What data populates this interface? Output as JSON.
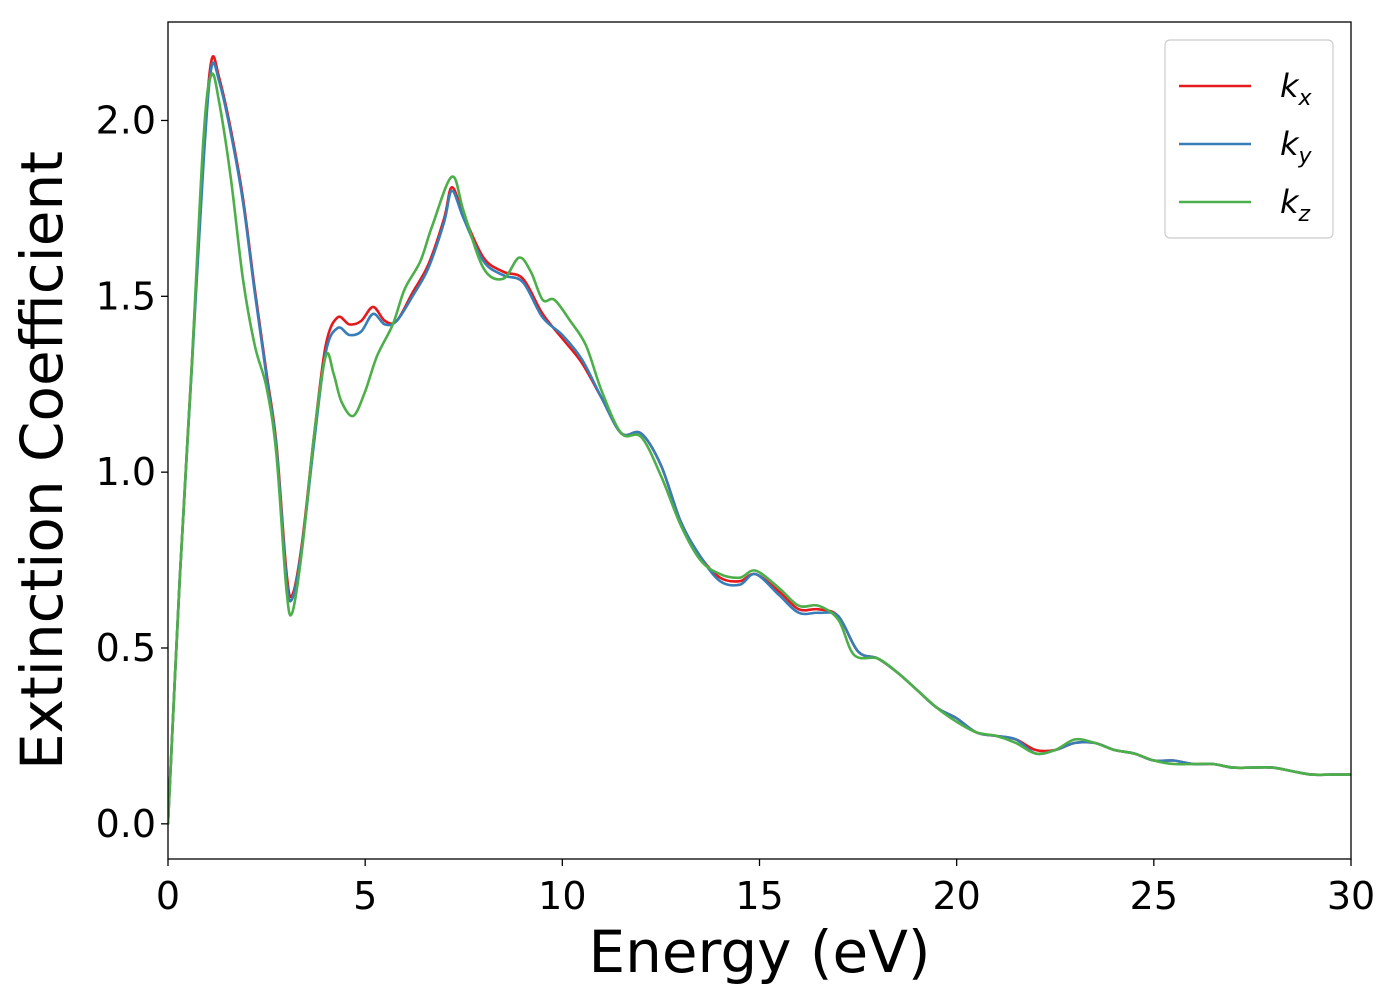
{
  "chart_data": {
    "type": "line",
    "title": "",
    "xlabel": "Energy (eV)",
    "ylabel": "Extinction Coefficient",
    "xlim": [
      0,
      30
    ],
    "ylim": [
      -0.1,
      2.28
    ],
    "xticks": [
      0,
      5,
      10,
      15,
      20,
      25,
      30
    ],
    "xtick_labels": [
      "0",
      "5",
      "10",
      "15",
      "20",
      "25",
      "30"
    ],
    "yticks": [
      0.0,
      0.5,
      1.0,
      1.5,
      2.0
    ],
    "ytick_labels": [
      "0.0",
      "0.5",
      "1.0",
      "1.5",
      "2.0"
    ],
    "grid": false,
    "legend_position": "top-right",
    "series": [
      {
        "name": "k",
        "subscript": "x",
        "color": "#e41a1c",
        "points": [
          [
            0,
            0.0
          ],
          [
            0.3,
            0.7
          ],
          [
            0.6,
            1.3
          ],
          [
            0.9,
            1.9
          ],
          [
            1.1,
            2.17
          ],
          [
            1.3,
            2.12
          ],
          [
            1.6,
            1.97
          ],
          [
            1.9,
            1.78
          ],
          [
            2.2,
            1.52
          ],
          [
            2.5,
            1.28
          ],
          [
            2.75,
            1.08
          ],
          [
            3.0,
            0.72
          ],
          [
            3.15,
            0.65
          ],
          [
            3.4,
            0.8
          ],
          [
            3.7,
            1.1
          ],
          [
            4.0,
            1.36
          ],
          [
            4.3,
            1.44
          ],
          [
            4.6,
            1.42
          ],
          [
            4.9,
            1.43
          ],
          [
            5.2,
            1.47
          ],
          [
            5.5,
            1.43
          ],
          [
            5.8,
            1.43
          ],
          [
            6.2,
            1.51
          ],
          [
            6.6,
            1.59
          ],
          [
            7.0,
            1.72
          ],
          [
            7.2,
            1.81
          ],
          [
            7.5,
            1.73
          ],
          [
            8.0,
            1.61
          ],
          [
            8.5,
            1.57
          ],
          [
            9.0,
            1.55
          ],
          [
            9.5,
            1.45
          ],
          [
            10.0,
            1.38
          ],
          [
            10.5,
            1.31
          ],
          [
            11.0,
            1.21
          ],
          [
            11.5,
            1.11
          ],
          [
            12.0,
            1.11
          ],
          [
            12.5,
            1.02
          ],
          [
            13.0,
            0.86
          ],
          [
            13.5,
            0.76
          ],
          [
            14.0,
            0.7
          ],
          [
            14.5,
            0.69
          ],
          [
            14.9,
            0.71
          ],
          [
            15.5,
            0.66
          ],
          [
            16.0,
            0.61
          ],
          [
            16.5,
            0.61
          ],
          [
            17.0,
            0.59
          ],
          [
            17.5,
            0.49
          ],
          [
            18.0,
            0.47
          ],
          [
            18.5,
            0.43
          ],
          [
            19.0,
            0.38
          ],
          [
            19.5,
            0.33
          ],
          [
            20.0,
            0.3
          ],
          [
            20.5,
            0.26
          ],
          [
            21.0,
            0.25
          ],
          [
            21.5,
            0.24
          ],
          [
            22.0,
            0.21
          ],
          [
            22.5,
            0.21
          ],
          [
            23.0,
            0.23
          ],
          [
            23.5,
            0.23
          ],
          [
            24.0,
            0.21
          ],
          [
            24.5,
            0.2
          ],
          [
            25.0,
            0.18
          ],
          [
            25.5,
            0.18
          ],
          [
            26.0,
            0.17
          ],
          [
            26.5,
            0.17
          ],
          [
            27.0,
            0.16
          ],
          [
            27.5,
            0.16
          ],
          [
            28.0,
            0.16
          ],
          [
            28.5,
            0.15
          ],
          [
            29.0,
            0.14
          ],
          [
            29.5,
            0.14
          ],
          [
            30.0,
            0.14
          ]
        ]
      },
      {
        "name": "k",
        "subscript": "y",
        "color": "#377eb8",
        "points": [
          [
            0,
            0.0
          ],
          [
            0.3,
            0.7
          ],
          [
            0.6,
            1.29
          ],
          [
            0.9,
            1.88
          ],
          [
            1.1,
            2.15
          ],
          [
            1.3,
            2.11
          ],
          [
            1.6,
            1.96
          ],
          [
            1.9,
            1.77
          ],
          [
            2.2,
            1.51
          ],
          [
            2.5,
            1.27
          ],
          [
            2.75,
            1.07
          ],
          [
            3.0,
            0.7
          ],
          [
            3.15,
            0.64
          ],
          [
            3.4,
            0.79
          ],
          [
            3.7,
            1.08
          ],
          [
            4.0,
            1.34
          ],
          [
            4.3,
            1.41
          ],
          [
            4.6,
            1.39
          ],
          [
            4.9,
            1.4
          ],
          [
            5.2,
            1.45
          ],
          [
            5.5,
            1.42
          ],
          [
            5.8,
            1.43
          ],
          [
            6.2,
            1.5
          ],
          [
            6.6,
            1.58
          ],
          [
            7.0,
            1.71
          ],
          [
            7.2,
            1.8
          ],
          [
            7.5,
            1.72
          ],
          [
            8.0,
            1.6
          ],
          [
            8.5,
            1.56
          ],
          [
            9.0,
            1.54
          ],
          [
            9.5,
            1.44
          ],
          [
            10.0,
            1.39
          ],
          [
            10.5,
            1.32
          ],
          [
            11.0,
            1.21
          ],
          [
            11.5,
            1.11
          ],
          [
            12.0,
            1.11
          ],
          [
            12.5,
            1.02
          ],
          [
            13.0,
            0.86
          ],
          [
            13.5,
            0.76
          ],
          [
            14.0,
            0.69
          ],
          [
            14.5,
            0.68
          ],
          [
            14.9,
            0.71
          ],
          [
            15.5,
            0.65
          ],
          [
            16.0,
            0.6
          ],
          [
            16.5,
            0.6
          ],
          [
            17.0,
            0.59
          ],
          [
            17.5,
            0.49
          ],
          [
            18.0,
            0.47
          ],
          [
            18.5,
            0.43
          ],
          [
            19.0,
            0.38
          ],
          [
            19.5,
            0.33
          ],
          [
            20.0,
            0.3
          ],
          [
            20.5,
            0.26
          ],
          [
            21.0,
            0.25
          ],
          [
            21.5,
            0.24
          ],
          [
            22.0,
            0.2
          ],
          [
            22.5,
            0.21
          ],
          [
            23.0,
            0.23
          ],
          [
            23.5,
            0.23
          ],
          [
            24.0,
            0.21
          ],
          [
            24.5,
            0.2
          ],
          [
            25.0,
            0.18
          ],
          [
            25.5,
            0.18
          ],
          [
            26.0,
            0.17
          ],
          [
            26.5,
            0.17
          ],
          [
            27.0,
            0.16
          ],
          [
            27.5,
            0.16
          ],
          [
            28.0,
            0.16
          ],
          [
            28.5,
            0.15
          ],
          [
            29.0,
            0.14
          ],
          [
            29.5,
            0.14
          ],
          [
            30.0,
            0.14
          ]
        ]
      },
      {
        "name": "k",
        "subscript": "z",
        "color": "#4daf4a",
        "points": [
          [
            0,
            0.0
          ],
          [
            0.3,
            0.7
          ],
          [
            0.6,
            1.3
          ],
          [
            0.9,
            1.95
          ],
          [
            1.1,
            2.13
          ],
          [
            1.3,
            2.05
          ],
          [
            1.6,
            1.83
          ],
          [
            1.9,
            1.55
          ],
          [
            2.2,
            1.36
          ],
          [
            2.5,
            1.24
          ],
          [
            2.75,
            1.05
          ],
          [
            3.0,
            0.67
          ],
          [
            3.15,
            0.6
          ],
          [
            3.4,
            0.78
          ],
          [
            3.7,
            1.1
          ],
          [
            4.0,
            1.33
          ],
          [
            4.2,
            1.28
          ],
          [
            4.4,
            1.2
          ],
          [
            4.7,
            1.16
          ],
          [
            5.0,
            1.23
          ],
          [
            5.3,
            1.33
          ],
          [
            5.7,
            1.42
          ],
          [
            6.0,
            1.52
          ],
          [
            6.4,
            1.6
          ],
          [
            6.7,
            1.7
          ],
          [
            7.2,
            1.84
          ],
          [
            7.5,
            1.74
          ],
          [
            8.0,
            1.58
          ],
          [
            8.5,
            1.55
          ],
          [
            8.9,
            1.61
          ],
          [
            9.2,
            1.57
          ],
          [
            9.5,
            1.49
          ],
          [
            9.8,
            1.49
          ],
          [
            10.2,
            1.43
          ],
          [
            10.6,
            1.36
          ],
          [
            11.0,
            1.23
          ],
          [
            11.5,
            1.11
          ],
          [
            12.0,
            1.1
          ],
          [
            12.5,
            0.99
          ],
          [
            13.0,
            0.85
          ],
          [
            13.5,
            0.75
          ],
          [
            14.0,
            0.71
          ],
          [
            14.5,
            0.7
          ],
          [
            14.9,
            0.72
          ],
          [
            15.5,
            0.67
          ],
          [
            16.0,
            0.62
          ],
          [
            16.5,
            0.62
          ],
          [
            17.0,
            0.58
          ],
          [
            17.4,
            0.48
          ],
          [
            18.0,
            0.47
          ],
          [
            18.5,
            0.43
          ],
          [
            19.0,
            0.38
          ],
          [
            19.5,
            0.33
          ],
          [
            20.0,
            0.29
          ],
          [
            20.5,
            0.26
          ],
          [
            21.0,
            0.25
          ],
          [
            21.5,
            0.23
          ],
          [
            22.0,
            0.2
          ],
          [
            22.5,
            0.21
          ],
          [
            23.0,
            0.24
          ],
          [
            23.5,
            0.23
          ],
          [
            24.0,
            0.21
          ],
          [
            24.5,
            0.2
          ],
          [
            25.0,
            0.18
          ],
          [
            25.5,
            0.17
          ],
          [
            26.0,
            0.17
          ],
          [
            26.5,
            0.17
          ],
          [
            27.0,
            0.16
          ],
          [
            27.5,
            0.16
          ],
          [
            28.0,
            0.16
          ],
          [
            28.5,
            0.15
          ],
          [
            29.0,
            0.14
          ],
          [
            29.5,
            0.14
          ],
          [
            30.0,
            0.14
          ]
        ]
      }
    ]
  }
}
